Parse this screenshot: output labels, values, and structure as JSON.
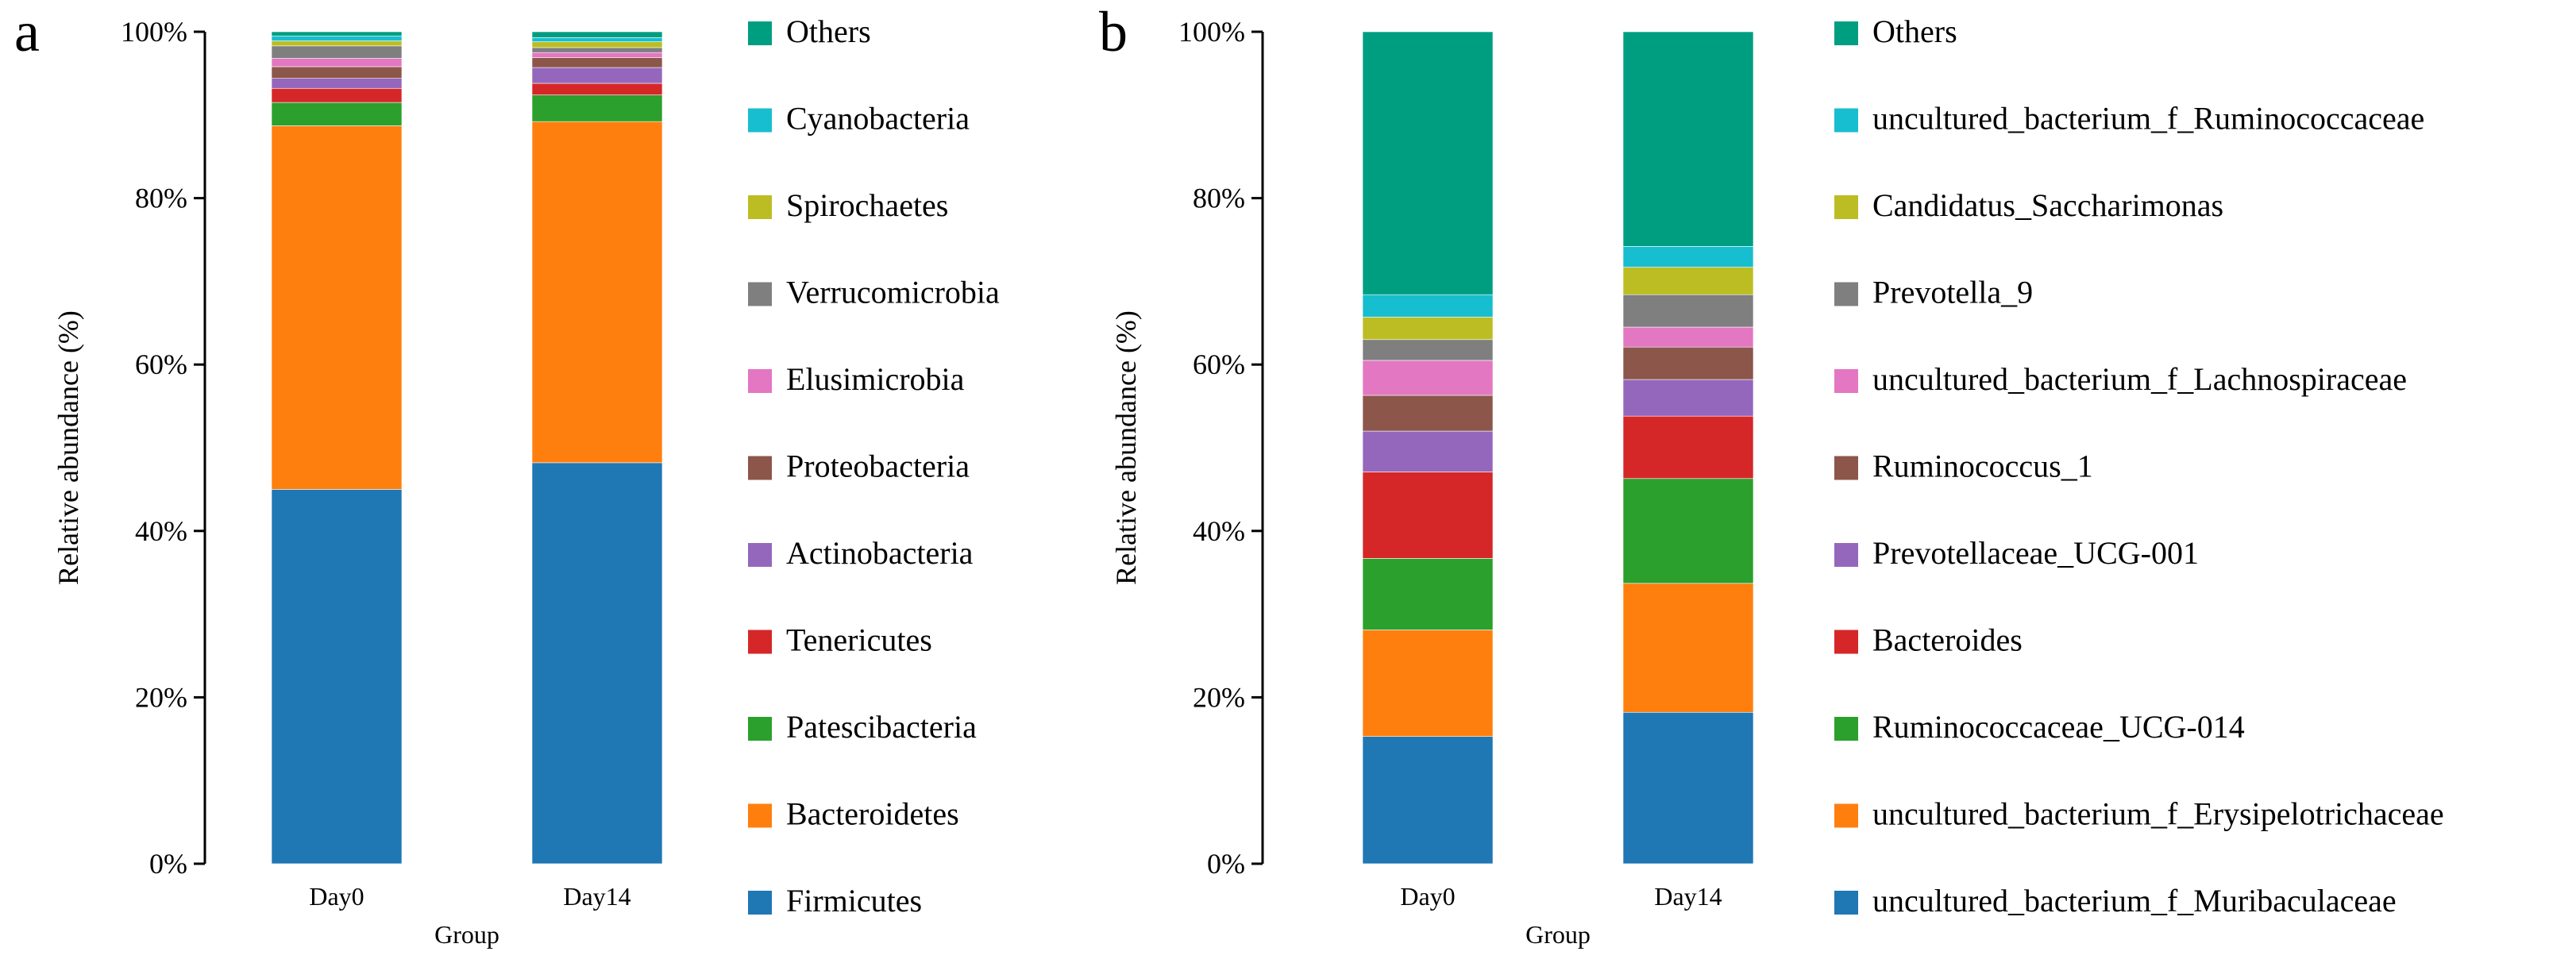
{
  "colors": {
    "palette": [
      "#1f77b4",
      "#ff7f0e",
      "#2ca02c",
      "#d62728",
      "#9467bd",
      "#8c564b",
      "#e377c2",
      "#7f7f7f",
      "#bcbd22",
      "#17becf",
      "#009e80"
    ]
  },
  "chart_data": [
    {
      "panel_label": "a",
      "type": "bar",
      "stacked": true,
      "title": "",
      "xlabel": "Group",
      "ylabel": "Relative abundance (%)",
      "ylim": [
        0,
        100
      ],
      "yticks": [
        "0%",
        "20%",
        "40%",
        "60%",
        "80%",
        "100%"
      ],
      "categories": [
        "Day0",
        "Day14"
      ],
      "legend_position": "right",
      "series": [
        {
          "name": "Firmicutes",
          "color": "#1f77b4",
          "values": [
            45.0,
            48.2
          ]
        },
        {
          "name": "Bacteroidetes",
          "color": "#ff7f0e",
          "values": [
            43.7,
            41.0
          ]
        },
        {
          "name": "Patescibacteria",
          "color": "#2ca02c",
          "values": [
            2.8,
            3.2
          ]
        },
        {
          "name": "Tenericutes",
          "color": "#d62728",
          "values": [
            1.7,
            1.4
          ]
        },
        {
          "name": "Actinobacteria",
          "color": "#9467bd",
          "values": [
            1.2,
            1.9
          ]
        },
        {
          "name": "Proteobacteria",
          "color": "#8c564b",
          "values": [
            1.4,
            1.2
          ]
        },
        {
          "name": "Elusimicrobia",
          "color": "#e377c2",
          "values": [
            1.0,
            0.6
          ]
        },
        {
          "name": "Verrucomicrobia",
          "color": "#7f7f7f",
          "values": [
            1.5,
            0.6
          ]
        },
        {
          "name": "Spirochaetes",
          "color": "#bcbd22",
          "values": [
            0.6,
            0.7
          ]
        },
        {
          "name": "Cyanobacteria",
          "color": "#17becf",
          "values": [
            0.6,
            0.5
          ]
        },
        {
          "name": "Others",
          "color": "#009e80",
          "values": [
            0.5,
            0.7
          ]
        }
      ]
    },
    {
      "panel_label": "b",
      "type": "bar",
      "stacked": true,
      "title": "",
      "xlabel": "Group",
      "ylabel": "Relative abundance (%)",
      "ylim": [
        0,
        100
      ],
      "yticks": [
        "0%",
        "20%",
        "40%",
        "60%",
        "80%",
        "100%"
      ],
      "categories": [
        "Day0",
        "Day14"
      ],
      "legend_position": "right",
      "series": [
        {
          "name": "uncultured_bacterium_f_Muribaculaceae",
          "color": "#1f77b4",
          "values": [
            15.3,
            18.2
          ]
        },
        {
          "name": "uncultured_bacterium_f_Erysipelotrichaceae",
          "color": "#ff7f0e",
          "values": [
            12.8,
            15.5
          ]
        },
        {
          "name": "Ruminococcaceae_UCG-014",
          "color": "#2ca02c",
          "values": [
            8.6,
            12.6
          ]
        },
        {
          "name": "Bacteroides",
          "color": "#d62728",
          "values": [
            10.4,
            7.5
          ]
        },
        {
          "name": "Prevotellaceae_UCG-001",
          "color": "#9467bd",
          "values": [
            4.9,
            4.4
          ]
        },
        {
          "name": "Ruminococcus_1",
          "color": "#8c564b",
          "values": [
            4.3,
            3.9
          ]
        },
        {
          "name": "uncultured_bacterium_f_Lachnospiraceae",
          "color": "#e377c2",
          "values": [
            4.2,
            2.4
          ]
        },
        {
          "name": "Prevotella_9",
          "color": "#7f7f7f",
          "values": [
            2.5,
            3.9
          ]
        },
        {
          "name": "Candidatus_Saccharimonas",
          "color": "#bcbd22",
          "values": [
            2.7,
            3.3
          ]
        },
        {
          "name": "uncultured_bacterium_f_Ruminococcaceae",
          "color": "#17becf",
          "values": [
            2.7,
            2.5
          ]
        },
        {
          "name": "Others",
          "color": "#009e80",
          "values": [
            31.6,
            25.8
          ]
        }
      ]
    }
  ]
}
